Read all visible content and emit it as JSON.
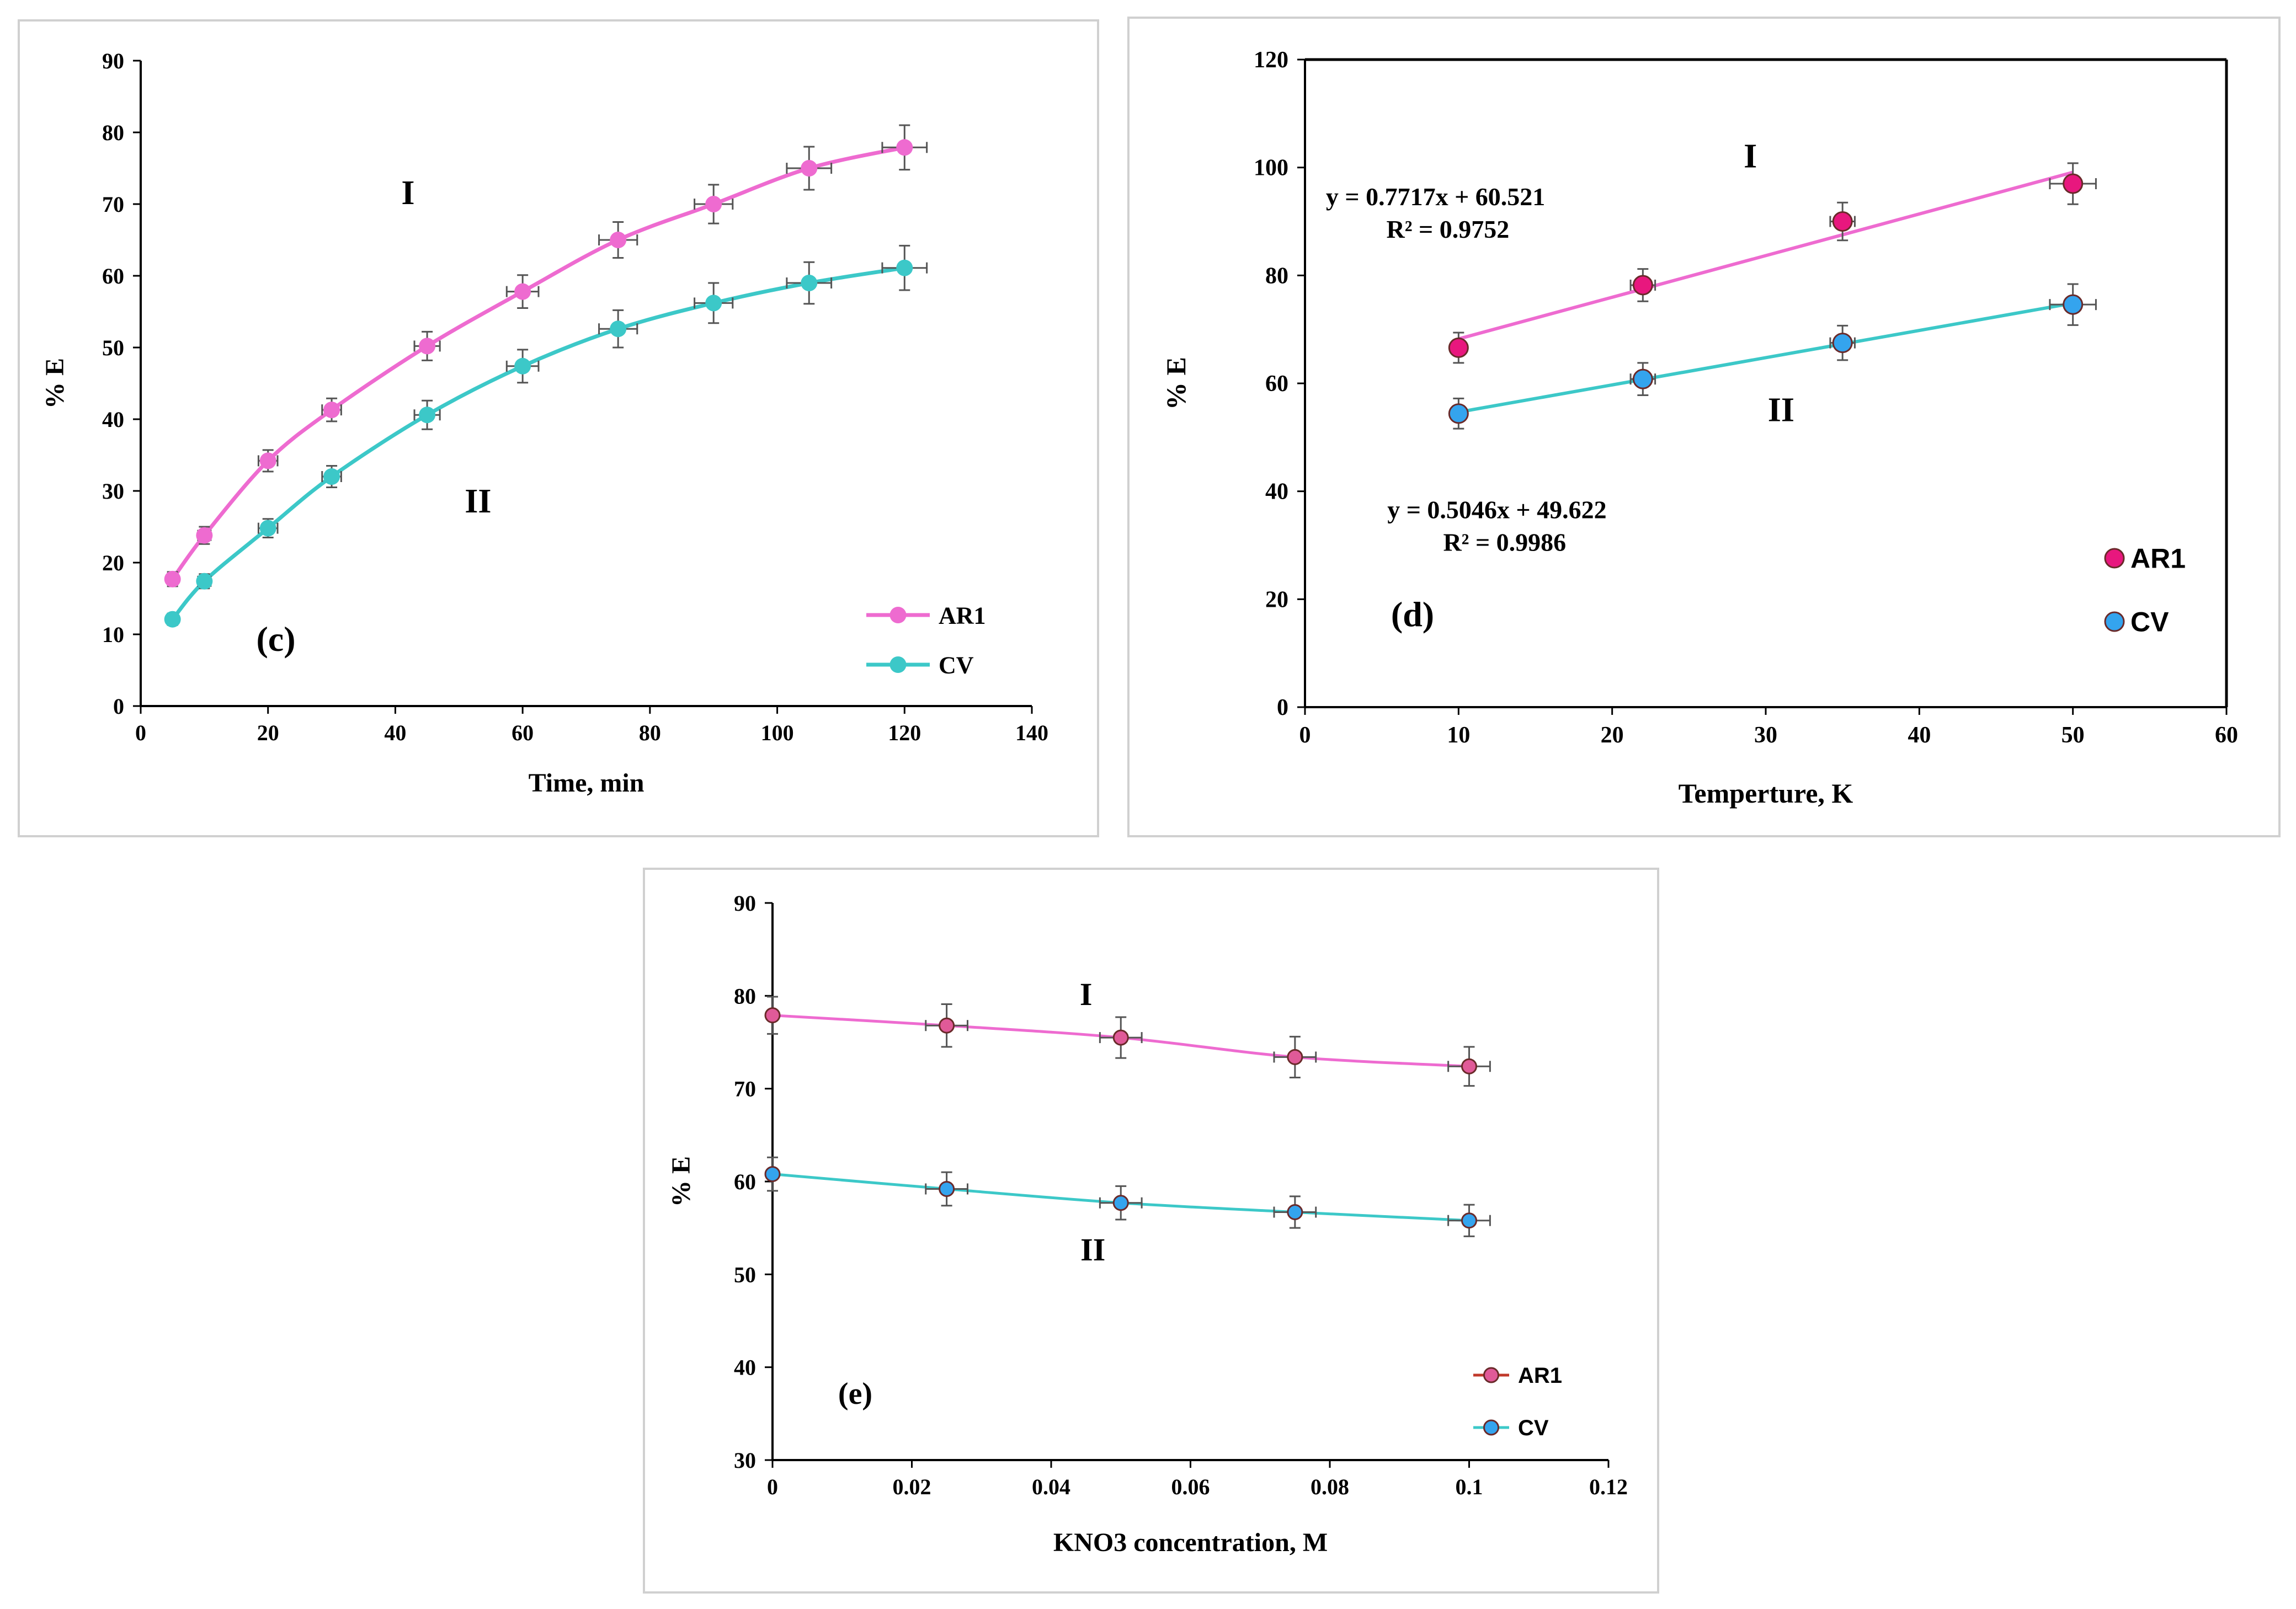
{
  "colors": {
    "ar1_line": "#ee6bd0",
    "ar1_marker": "#ee6bd0",
    "cv_line": "#3cc8c8",
    "cv_marker": "#3cc8c8",
    "d_ar1_marker": "#e8177e",
    "d_ar1_line": "#ee6bd0",
    "d_cv_marker": "#34a4ee",
    "d_cv_line": "#3cc8c8",
    "e_ar1_marker": "#e05a98",
    "e_ar1_line": "#ee6bd0",
    "e_ar1_legend_line": "#c0392b",
    "e_cv_marker": "#34a4ee",
    "e_cv_line": "#3cc8c8",
    "marker_stroke_dark": "#6a2a2a",
    "error_bar": "#555555",
    "axis": "#000000"
  },
  "chart_data": [
    {
      "id": "c",
      "type": "line",
      "title": "",
      "panel_label": "(c)",
      "xlabel": "Time, min",
      "ylabel": "% E",
      "xlim": [
        0,
        140
      ],
      "ylim": [
        0,
        90
      ],
      "xticks": [
        "0",
        "20",
        "40",
        "60",
        "80",
        "100",
        "120",
        "140"
      ],
      "yticks": [
        "0",
        "10",
        "20",
        "30",
        "40",
        "50",
        "60",
        "70",
        "80",
        "90"
      ],
      "grid": false,
      "legend_position": "bottom-right",
      "annotations": [
        {
          "text": "I",
          "x": 42,
          "y": 70
        },
        {
          "text": "II",
          "x": 53,
          "y": 27
        }
      ],
      "series": [
        {
          "name": "AR1",
          "x": [
            5,
            10,
            20,
            30,
            45,
            60,
            75,
            90,
            105,
            120
          ],
          "y": [
            17.7,
            23.8,
            34.2,
            41.3,
            50.2,
            57.8,
            65.0,
            70.0,
            75.0,
            77.9
          ],
          "yerr": [
            1.0,
            1.2,
            1.5,
            1.6,
            2.0,
            2.3,
            2.5,
            2.7,
            3.0,
            3.1
          ],
          "xerr": [
            0,
            1.0,
            1.5,
            1.5,
            2.0,
            2.5,
            3.0,
            3.0,
            3.5,
            3.5
          ]
        },
        {
          "name": "CV",
          "x": [
            5,
            10,
            20,
            30,
            45,
            60,
            75,
            90,
            105,
            120
          ],
          "y": [
            12.1,
            17.4,
            24.8,
            32.0,
            40.6,
            47.4,
            52.6,
            56.2,
            59.0,
            61.1
          ],
          "yerr": [
            0.8,
            1.0,
            1.3,
            1.5,
            2.0,
            2.3,
            2.6,
            2.8,
            2.9,
            3.1
          ],
          "xerr": [
            0,
            1.0,
            1.5,
            1.5,
            2.0,
            2.5,
            3.0,
            3.0,
            3.5,
            3.5
          ]
        }
      ]
    },
    {
      "id": "d",
      "type": "scatter",
      "title": "",
      "panel_label": "(d)",
      "xlabel": "Temperture, K",
      "ylabel": "% E",
      "xlim": [
        0,
        60
      ],
      "ylim": [
        0,
        120
      ],
      "xticks": [
        "0",
        "10",
        "20",
        "30",
        "40",
        "50",
        "60"
      ],
      "yticks": [
        "0",
        "20",
        "40",
        "60",
        "80",
        "100",
        "120"
      ],
      "grid": false,
      "legend_position": "bottom-right",
      "annotations": [
        {
          "text": "I",
          "x": 29,
          "y": 100
        },
        {
          "text": "II",
          "x": 31,
          "y": 53
        },
        {
          "text": "y = 0.7717x + 60.521",
          "x": 8.5,
          "y": 93
        },
        {
          "text": "R² = 0.9752",
          "x": 9.3,
          "y": 87
        },
        {
          "text": "y = 0.5046x + 49.622",
          "x": 12.5,
          "y": 35
        },
        {
          "text": "R² = 0.9986",
          "x": 13,
          "y": 29
        }
      ],
      "series": [
        {
          "name": "AR1",
          "x": [
            10,
            22,
            35,
            50
          ],
          "y": [
            66.6,
            78.2,
            90.0,
            97.0
          ],
          "yerr": [
            2.8,
            3.0,
            3.5,
            3.8
          ],
          "xerr": [
            0.5,
            0.8,
            0.8,
            1.5
          ],
          "trendline": {
            "slope": 0.7717,
            "intercept": 60.521,
            "x": [
              10,
              50
            ]
          }
        },
        {
          "name": "CV",
          "x": [
            10,
            22,
            35,
            50
          ],
          "y": [
            54.4,
            60.8,
            67.5,
            74.6
          ],
          "yerr": [
            2.8,
            3.0,
            3.2,
            3.8
          ],
          "xerr": [
            0.5,
            0.8,
            0.8,
            1.5
          ],
          "trendline": {
            "slope": 0.5046,
            "intercept": 49.622,
            "x": [
              10,
              50
            ]
          }
        }
      ]
    },
    {
      "id": "e",
      "type": "line",
      "title": "",
      "panel_label": "(e)",
      "xlabel": "KNO3 concentration, M",
      "ylabel": "% E",
      "xlim": [
        0,
        0.12
      ],
      "ylim": [
        30,
        90
      ],
      "xticks": [
        "0",
        "0.02",
        "0.04",
        "0.06",
        "0.08",
        "0.1",
        "0.12"
      ],
      "yticks": [
        "30",
        "40",
        "50",
        "60",
        "70",
        "80",
        "90"
      ],
      "grid": false,
      "legend_position": "bottom-right",
      "annotations": [
        {
          "text": "I",
          "x": 0.045,
          "y": 79
        },
        {
          "text": "II",
          "x": 0.046,
          "y": 51.5
        }
      ],
      "series": [
        {
          "name": "AR1",
          "x": [
            0,
            0.025,
            0.05,
            0.075,
            0.1
          ],
          "y": [
            77.9,
            76.8,
            75.5,
            73.4,
            72.4
          ],
          "yerr": [
            2.0,
            2.3,
            2.2,
            2.2,
            2.1
          ],
          "xerr": [
            0,
            0.003,
            0.003,
            0.003,
            0.003
          ]
        },
        {
          "name": "CV",
          "x": [
            0,
            0.025,
            0.05,
            0.075,
            0.1
          ],
          "y": [
            60.8,
            59.2,
            57.7,
            56.7,
            55.8
          ],
          "yerr": [
            1.8,
            1.8,
            1.8,
            1.7,
            1.7
          ],
          "xerr": [
            0,
            0.003,
            0.003,
            0.003,
            0.003
          ]
        }
      ]
    }
  ]
}
